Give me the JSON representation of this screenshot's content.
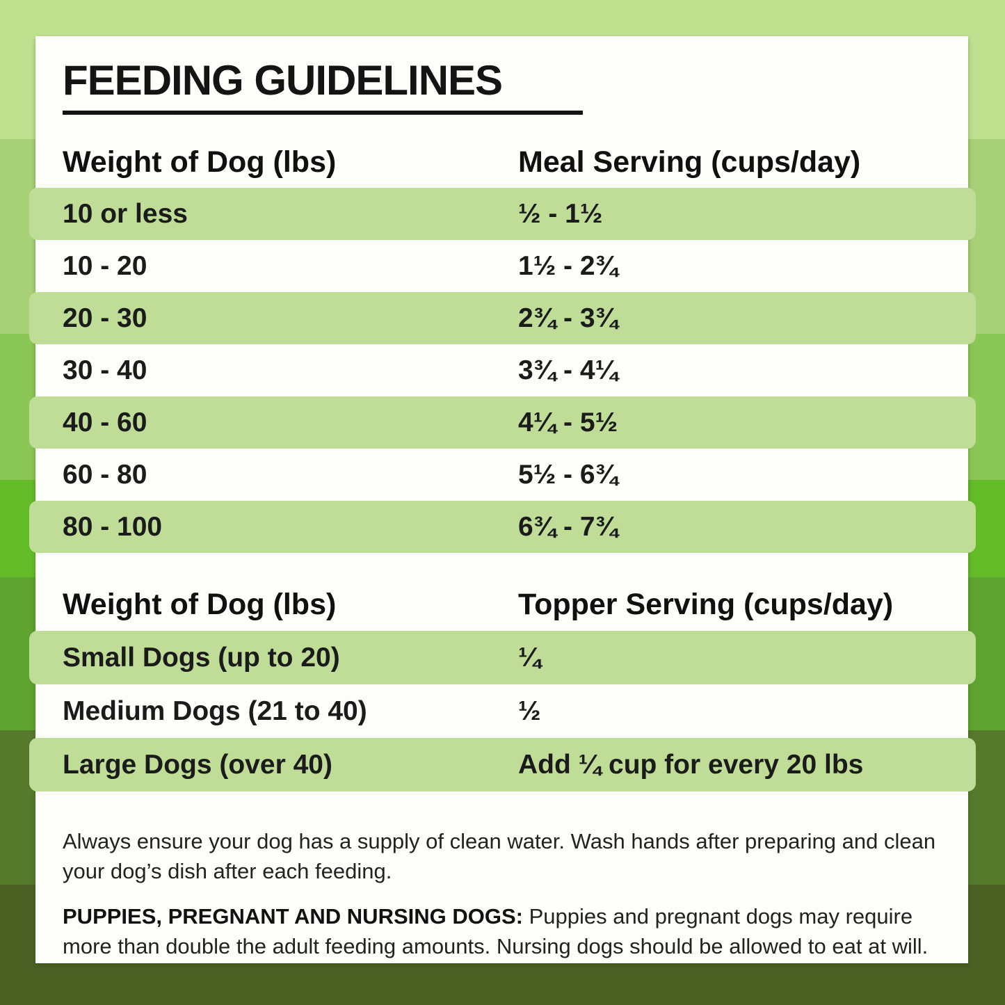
{
  "title": "FEEDING GUIDELINES",
  "meal_table": {
    "col1_header": "Weight of Dog (lbs)",
    "col2_header": "Meal Serving (cups/day)",
    "rows": [
      {
        "weight": "10 or less",
        "serving": "½ - 1½"
      },
      {
        "weight": "10 - 20",
        "serving": "1½ - 2¾"
      },
      {
        "weight": "20 - 30",
        "serving": "2¾ - 3¾"
      },
      {
        "weight": "30 - 40",
        "serving": "3¾ - 4¼"
      },
      {
        "weight": "40 - 60",
        "serving": "4¼ - 5½"
      },
      {
        "weight": "60 - 80",
        "serving": "5½ - 6¾"
      },
      {
        "weight": "80 - 100",
        "serving": "6¾ - 7¾"
      }
    ]
  },
  "topper_table": {
    "col1_header": "Weight of Dog (lbs)",
    "col2_header": "Topper Serving (cups/day)",
    "rows": [
      {
        "weight": "Small Dogs (up to 20)",
        "serving": "¼"
      },
      {
        "weight": "Medium Dogs (21 to 40)",
        "serving": "½"
      },
      {
        "weight": "Large Dogs (over 40)",
        "serving": "Add ¼ cup for every 20 lbs"
      }
    ]
  },
  "notes": {
    "water_note": "Always ensure your dog has a supply of clean water. Wash hands after preparing and clean your dog’s dish after each feeding.",
    "puppies_label": "PUPPIES, PREGNANT AND NURSING DOGS:",
    "puppies_note": "Puppies and pregnant dogs may require more than double the adult feeding amounts. Nursing dogs should be allowed to eat at will."
  },
  "colors": {
    "card_background": "#fdfdfa",
    "row_highlight": "#bfdd97",
    "text": "#1b1b1b",
    "background_bands": [
      "#bfe18f",
      "#a7d077",
      "#8bc756",
      "#64bb28",
      "#5ea32f",
      "#56792c",
      "#4b6124"
    ]
  }
}
